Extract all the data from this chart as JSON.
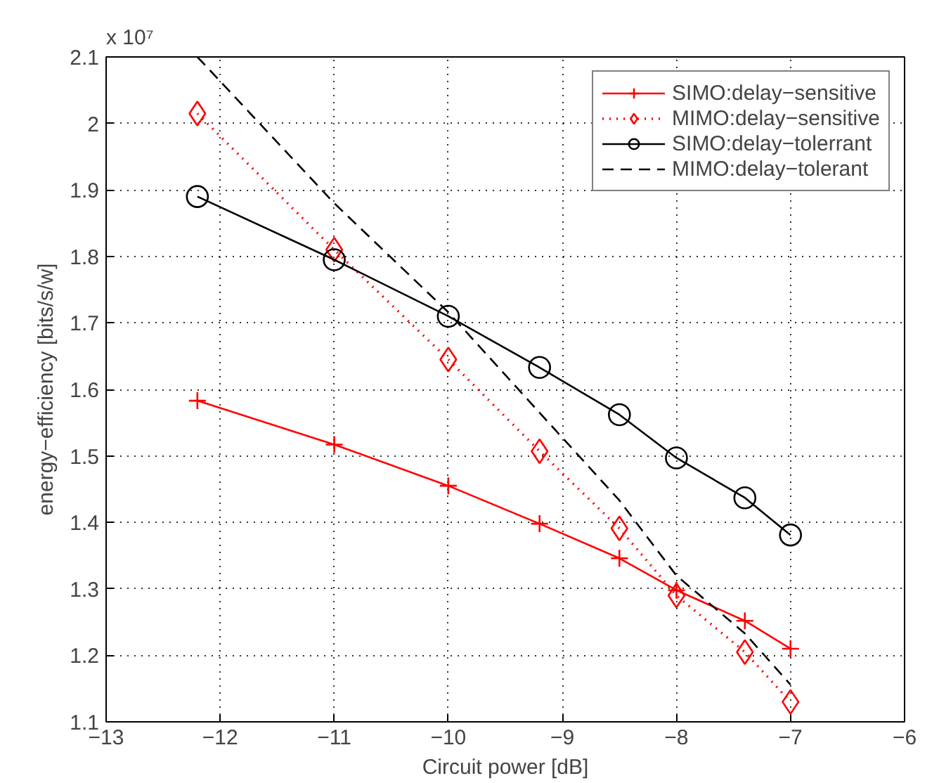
{
  "chart_data": {
    "type": "line",
    "xlabel": "Circuit power [dB]",
    "ylabel": "energy−efficiency [bits/s/w]",
    "annotations": [
      "x 10⁷"
    ],
    "x": [
      -12.2,
      -11,
      -10,
      -9.2,
      -8.5,
      -8,
      -7.4,
      -7
    ],
    "xlim": [
      -13,
      -6
    ],
    "xticks": [
      -13,
      -12,
      -11,
      -10,
      -9,
      -8,
      -7,
      -6
    ],
    "ylim": [
      1.1,
      2.1
    ],
    "yticks": [
      1.1,
      1.2,
      1.3,
      1.4,
      1.5,
      1.6,
      1.7,
      1.8,
      1.9,
      2,
      2.1
    ],
    "grid": true,
    "legend": "top right",
    "series": [
      {
        "name": "SIMO:delay−sensitive",
        "color": "#ff0000",
        "marker": "cross",
        "line_style": "solid",
        "values": [
          1.583,
          1.517,
          1.455,
          1.398,
          1.346,
          1.298,
          1.252,
          1.21
        ]
      },
      {
        "name": "MIMO:delay−sensitive",
        "color": "#ff0000",
        "marker": "diamond",
        "line_style": "dotted",
        "values": [
          2.015,
          1.81,
          1.645,
          1.507,
          1.391,
          1.29,
          1.205,
          1.13
        ]
      },
      {
        "name": "SIMO:delay−tolerrant",
        "color": "#000000",
        "marker": "circle",
        "line_style": "solid",
        "values": [
          1.89,
          1.795,
          1.71,
          1.633,
          1.562,
          1.497,
          1.437,
          1.381
        ]
      },
      {
        "name": "MIMO:delay−tolerant",
        "color": "#000000",
        "marker": "none",
        "line_style": "dashed",
        "values": [
          2.1,
          1.88,
          1.716,
          1.565,
          1.433,
          1.32,
          1.233,
          1.156
        ]
      }
    ]
  }
}
